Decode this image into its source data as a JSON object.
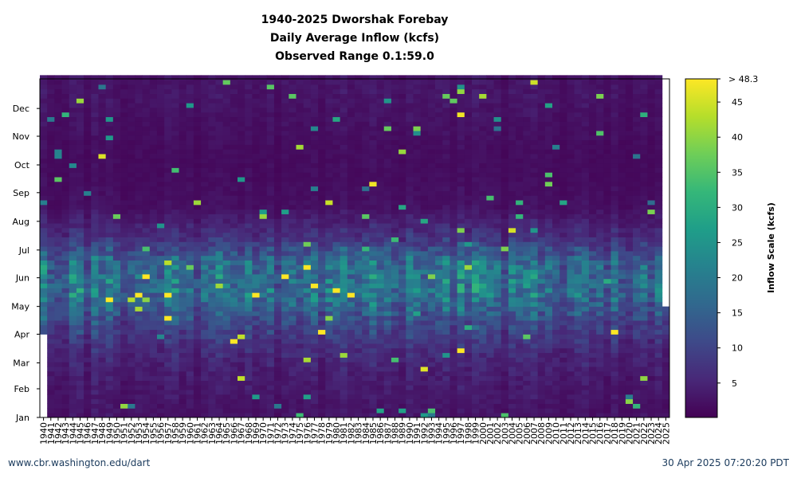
{
  "chart_data": {
    "type": "heatmap",
    "title_lines": [
      "1940-2025 Dworshak Forebay",
      "Daily Average Inflow (kcfs)",
      "Observed Range 0.1:59.0"
    ],
    "x_categories": [
      "1940",
      "1941",
      "1942",
      "1943",
      "1944",
      "1945",
      "1946",
      "1947",
      "1948",
      "1949",
      "1950",
      "1951",
      "1952",
      "1953",
      "1954",
      "1955",
      "1956",
      "1957",
      "1958",
      "1959",
      "1960",
      "1961",
      "1962",
      "1963",
      "1964",
      "1965",
      "1966",
      "1967",
      "1968",
      "1969",
      "1970",
      "1971",
      "1972",
      "1973",
      "1974",
      "1975",
      "1976",
      "1977",
      "1978",
      "1979",
      "1980",
      "1981",
      "1982",
      "1983",
      "1984",
      "1985",
      "1986",
      "1987",
      "1988",
      "1989",
      "1990",
      "1991",
      "1992",
      "1993",
      "1994",
      "1995",
      "1996",
      "1997",
      "1998",
      "1999",
      "2000",
      "2001",
      "2002",
      "2003",
      "2004",
      "2005",
      "2006",
      "2007",
      "2008",
      "2009",
      "2010",
      "2011",
      "2012",
      "2013",
      "2014",
      "2015",
      "2016",
      "2017",
      "2018",
      "2019",
      "2020",
      "2021",
      "2022",
      "2023",
      "2024",
      "2025"
    ],
    "y_categories": [
      "Jan",
      "Feb",
      "Mar",
      "Apr",
      "May",
      "Jun",
      "Jul",
      "Aug",
      "Sep",
      "Oct",
      "Nov",
      "Dec"
    ],
    "data_start": {
      "first_year": "1940",
      "first_year_start_month": "Apr",
      "last_year": "2025",
      "last_year_end_month": "Apr"
    },
    "colorbar": {
      "label": "Inflow Scale (kcfs)",
      "ticks": [
        5,
        10,
        15,
        20,
        25,
        30,
        35,
        40,
        45
      ],
      "top_label": "> 48.3",
      "min": 0.1,
      "max": 48.3,
      "colormap": "viridis",
      "stops": [
        "#440154",
        "#482878",
        "#3e4989",
        "#31688e",
        "#26828e",
        "#1f9e89",
        "#35b779",
        "#6ece58",
        "#b5de2b",
        "#fde725"
      ]
    },
    "seasonal_profile_kcfs": {
      "Jan": 2.5,
      "Feb": 3.5,
      "Mar": 5.5,
      "Apr": 10,
      "May": 17,
      "Jun": 15,
      "Jul": 6,
      "Aug": 2,
      "Sep": 1.5,
      "Oct": 1.5,
      "Nov": 2,
      "Dec": 2.5
    }
  },
  "footer": {
    "left": "www.cbr.washington.edu/dart",
    "right": "30 Apr 2025 07:20:20 PDT"
  }
}
